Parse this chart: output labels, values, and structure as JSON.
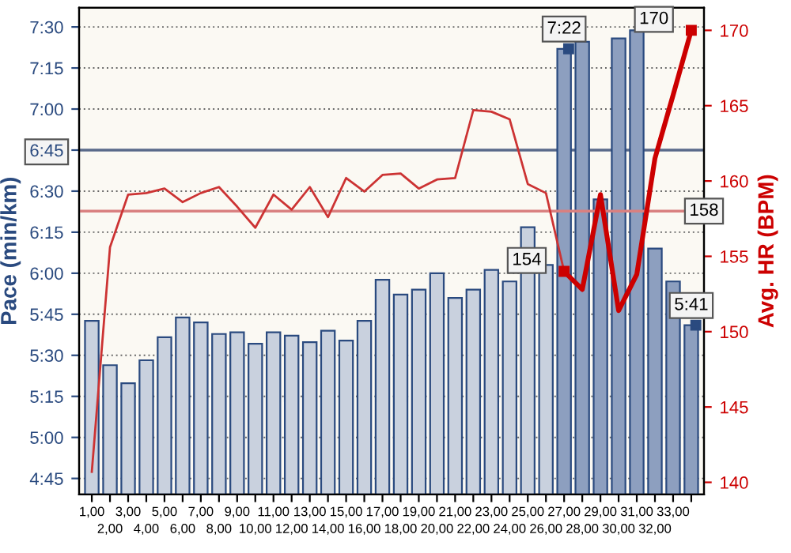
{
  "chart_data": {
    "type": "bar",
    "xlabel": null,
    "ylabel": "Pace (min/km)",
    "y2label": "Avg. HR (BPM)",
    "categories": [
      "1,00",
      "2,00",
      "3,00",
      "4,00",
      "5,00",
      "6,00",
      "7,00",
      "8,00",
      "9,00",
      "10,00",
      "11,00",
      "12,00",
      "13,00",
      "14,00",
      "15,00",
      "16,00",
      "17,00",
      "18,00",
      "19,00",
      "20,00",
      "21,00",
      "22,00",
      "23,00",
      "24,00",
      "25,00",
      "26,00",
      "27,00",
      "28,00",
      "29,00",
      "30,00",
      "31,00",
      "32,00",
      "33,00",
      null
    ],
    "series": [
      {
        "axis": "y",
        "values": [
          5.71,
          5.44,
          5.33,
          5.47,
          5.61,
          5.73,
          5.7,
          5.63,
          5.64,
          5.57,
          5.64,
          5.62,
          5.58,
          5.65,
          5.59,
          5.71,
          5.96,
          5.87,
          5.9,
          6.0,
          5.85,
          5.9,
          6.02,
          5.95,
          6.28,
          6.05,
          7.3667,
          7.41,
          6.45,
          7.43,
          7.48,
          6.15,
          5.95,
          5.6833
        ],
        "colors": [
          "#c9d1de",
          "#c9d1de",
          "#c9d1de",
          "#c9d1de",
          "#c9d1de",
          "#c9d1de",
          "#c9d1de",
          "#c9d1de",
          "#c9d1de",
          "#c9d1de",
          "#c9d1de",
          "#c9d1de",
          "#c9d1de",
          "#c9d1de",
          "#c9d1de",
          "#c9d1de",
          "#c9d1de",
          "#c9d1de",
          "#c9d1de",
          "#c9d1de",
          "#c9d1de",
          "#c9d1de",
          "#c9d1de",
          "#c9d1de",
          "#c9d1de",
          "#c9d1de",
          "#8d9fbf",
          "#8d9fbf",
          "#8d9fbf",
          "#8d9fbf",
          "#8d9fbf",
          "#8d9fbf",
          "#8d9fbf",
          "#8d9fbf"
        ],
        "value_labels": [
          null,
          null,
          null,
          null,
          null,
          null,
          null,
          null,
          null,
          null,
          null,
          null,
          null,
          null,
          null,
          null,
          null,
          null,
          null,
          null,
          null,
          null,
          null,
          null,
          null,
          null,
          "7:22",
          null,
          null,
          null,
          null,
          null,
          null,
          "5:41"
        ]
      },
      {
        "type": "line",
        "axis": "y2",
        "color": "#cc3333",
        "values": [
          140.7,
          155.6,
          159.1,
          159.2,
          159.5,
          158.6,
          159.2,
          159.6,
          158.3,
          156.9,
          159.1,
          158.1,
          159.6,
          157.6,
          160.2,
          159.3,
          160.4,
          160.5,
          159.5,
          160.1,
          160.2,
          164.7,
          164.6,
          164.1,
          159.8,
          159.2,
          154,
          null,
          null,
          null,
          null,
          null,
          null,
          null
        ]
      },
      {
        "type": "line",
        "axis": "y2",
        "color": "#cc0000",
        "values": [
          null,
          null,
          null,
          null,
          null,
          null,
          null,
          null,
          null,
          null,
          null,
          null,
          null,
          null,
          null,
          null,
          null,
          null,
          null,
          null,
          null,
          null,
          null,
          null,
          null,
          null,
          154,
          152.8,
          159.1,
          151.4,
          153.8,
          161.5,
          165.7,
          170
        ],
        "value_labels": [
          null,
          null,
          null,
          null,
          null,
          null,
          null,
          null,
          null,
          null,
          null,
          null,
          null,
          null,
          null,
          null,
          null,
          null,
          null,
          null,
          null,
          null,
          null,
          null,
          null,
          null,
          "154",
          null,
          null,
          null,
          null,
          null,
          null,
          "170"
        ]
      }
    ],
    "ylim": [
      4.653,
      7.617
    ],
    "yticks": [
      {
        "value": 4.75,
        "label": "4:45"
      },
      {
        "value": 5.0,
        "label": "5:00"
      },
      {
        "value": 5.25,
        "label": "5:15"
      },
      {
        "value": 5.5,
        "label": "5:30"
      },
      {
        "value": 5.75,
        "label": "5:45"
      },
      {
        "value": 6.0,
        "label": "6:00"
      },
      {
        "value": 6.25,
        "label": "6:15"
      },
      {
        "value": 6.5,
        "label": "6:30"
      },
      {
        "value": 6.75,
        "label": "6:45"
      },
      {
        "value": 7.0,
        "label": "7:00"
      },
      {
        "value": 7.25,
        "label": "7:15"
      },
      {
        "value": 7.5,
        "label": "7:30"
      }
    ],
    "y2lim": [
      139.2,
      171.5
    ],
    "y2ticks": [
      140,
      145,
      150,
      155,
      160,
      165,
      170
    ],
    "ref_lines": [
      {
        "axis": "y",
        "value": 6.75,
        "color": "#5a6a8a"
      },
      {
        "axis": "y2",
        "value": 158,
        "label": "158",
        "color": "#d98080"
      }
    ],
    "grid": "y",
    "legend": false
  }
}
